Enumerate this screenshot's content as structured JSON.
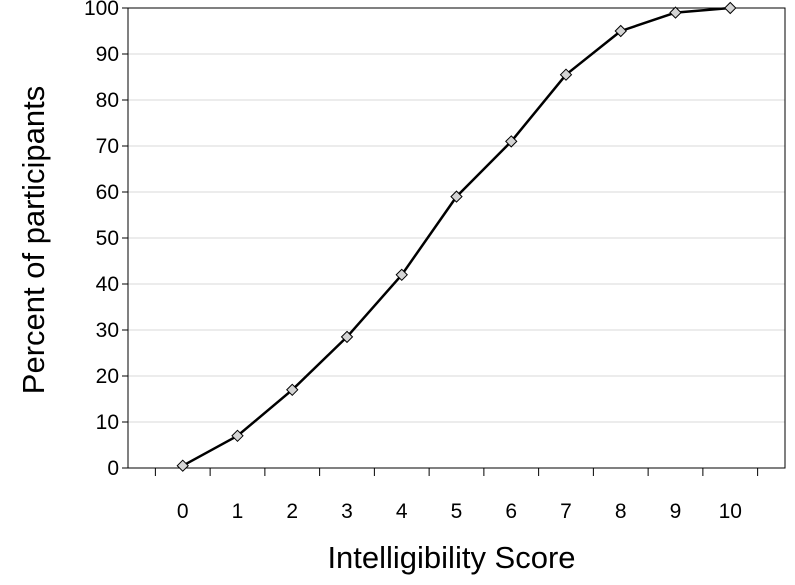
{
  "chart_data": {
    "type": "line",
    "title": "",
    "xlabel": "Intelligibility Score",
    "ylabel": "Percent of participants",
    "x": [
      0,
      1,
      2,
      3,
      4,
      5,
      6,
      7,
      8,
      9,
      10
    ],
    "x_tick_labels": [
      "0",
      "1",
      "2",
      "3",
      "4",
      "5",
      "6",
      "7",
      "8",
      "9",
      "10"
    ],
    "y_tick_labels": [
      "0",
      "10",
      "20",
      "30",
      "40",
      "50",
      "60",
      "70",
      "80",
      "90",
      "100"
    ],
    "xlim": [
      -1,
      11
    ],
    "ylim": [
      0,
      100
    ],
    "grid": "horizontal",
    "legend": "none",
    "series": [
      {
        "values": [
          0.5,
          7,
          17,
          28.5,
          42,
          59,
          71,
          85.5,
          95,
          99,
          100
        ],
        "marker": "diamond"
      }
    ],
    "colors": {
      "line": "#000000",
      "marker_fill": "#d4d4d4",
      "marker_stroke": "#000000",
      "grid": "#d9d9d9",
      "axis": "#000000"
    }
  }
}
